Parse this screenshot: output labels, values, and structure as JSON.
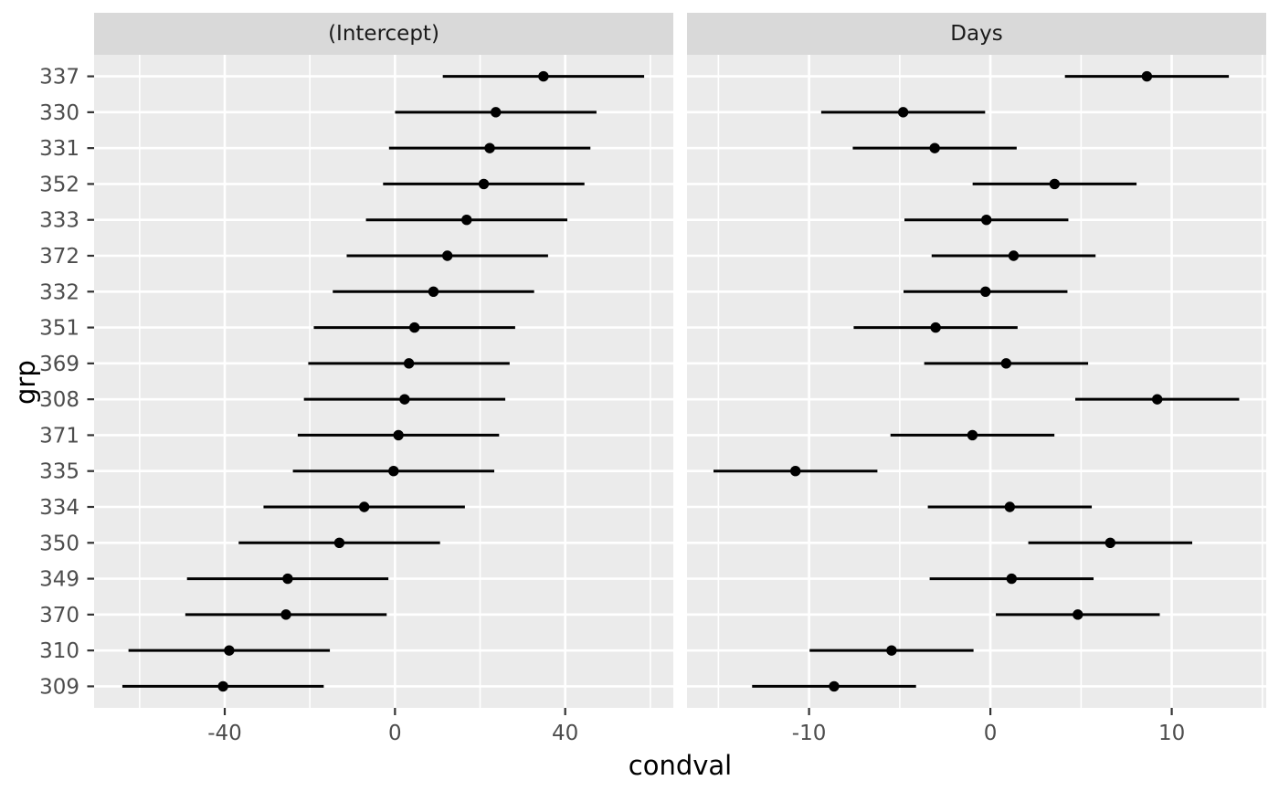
{
  "colors": {
    "figure_background": "#FFFFFF",
    "panel_background": "#EBEBEB",
    "strip_background": "#D9D9D9",
    "gridline": "#FFFFFF",
    "point": "#000000",
    "interval": "#000000",
    "axis_text": "#4D4D4D",
    "strip_text": "#1A1A1A",
    "axis_title": "#000000",
    "tick_mark": "#333333"
  },
  "chart_data": {
    "type": "pointrange-dotplot",
    "title": "",
    "xlabel": "condval",
    "ylabel": "grp",
    "legend_position": "none",
    "grid": "on",
    "groups": [
      "337",
      "330",
      "331",
      "352",
      "333",
      "372",
      "332",
      "351",
      "369",
      "308",
      "371",
      "335",
      "334",
      "350",
      "349",
      "370",
      "310",
      "309"
    ],
    "facets": [
      {
        "label": "(Intercept)",
        "xlim": [
          -70.7,
          65.4
        ],
        "major_ticks": [
          -40,
          0,
          40
        ],
        "tick_labels": [
          "-40",
          "0",
          "40"
        ],
        "minor_ticks": [
          -60,
          -20,
          20,
          60
        ],
        "interval_halfwidth": 23.66,
        "values": [
          34.89,
          23.69,
          22.26,
          20.86,
          16.84,
          12.31,
          9.04,
          4.58,
          3.28,
          2.26,
          0.81,
          -0.33,
          -7.23,
          -13.07,
          -25.21,
          -25.61,
          -38.96,
          -40.4
        ]
      },
      {
        "label": "Days",
        "xlim": [
          -16.73,
          15.21
        ],
        "major_ticks": [
          -10,
          0,
          10
        ],
        "tick_labels": [
          "-10",
          "0",
          "10"
        ],
        "minor_ticks": [
          -15,
          -5,
          5,
          15
        ],
        "interval_halfwidth": 4.52,
        "values": [
          8.63,
          -4.81,
          -3.07,
          3.54,
          -0.22,
          1.28,
          -0.27,
          -3.02,
          0.87,
          9.2,
          -0.99,
          -10.75,
          1.07,
          6.61,
          1.17,
          4.82,
          -5.45,
          -8.62
        ]
      }
    ]
  }
}
